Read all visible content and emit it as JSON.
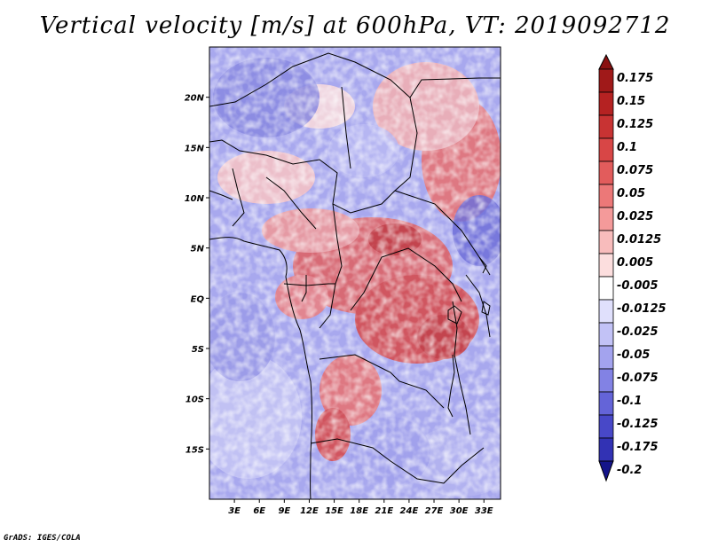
{
  "title": "Vertical velocity [m/s] at 600hPa, VT: 2019092712",
  "credit": "GrADS: IGES/COLA",
  "map": {
    "lon_range": [
      0,
      35
    ],
    "lat_range": [
      -20,
      25
    ],
    "lon_ticks": [
      {
        "value": 3,
        "label": "3E"
      },
      {
        "value": 6,
        "label": "6E"
      },
      {
        "value": 9,
        "label": "9E"
      },
      {
        "value": 12,
        "label": "12E"
      },
      {
        "value": 15,
        "label": "15E"
      },
      {
        "value": 18,
        "label": "18E"
      },
      {
        "value": 21,
        "label": "21E"
      },
      {
        "value": 24,
        "label": "24E"
      },
      {
        "value": 27,
        "label": "27E"
      },
      {
        "value": 30,
        "label": "30E"
      },
      {
        "value": 33,
        "label": "33E"
      }
    ],
    "lat_ticks": [
      {
        "value": 20,
        "label": "20N"
      },
      {
        "value": 15,
        "label": "15N"
      },
      {
        "value": 10,
        "label": "10N"
      },
      {
        "value": 5,
        "label": "5N"
      },
      {
        "value": 0,
        "label": "EQ"
      },
      {
        "value": -5,
        "label": "5S"
      },
      {
        "value": -10,
        "label": "10S"
      },
      {
        "value": -15,
        "label": "15S"
      }
    ]
  },
  "colorbar": {
    "levels": [
      {
        "label": "0.175",
        "color": "#a01919"
      },
      {
        "label": "0.15",
        "color": "#b52222"
      },
      {
        "label": "0.125",
        "color": "#c83333"
      },
      {
        "label": "0.1",
        "color": "#d84646"
      },
      {
        "label": "0.075",
        "color": "#e25c5c"
      },
      {
        "label": "0.05",
        "color": "#ec7878"
      },
      {
        "label": "0.025",
        "color": "#f49a9a"
      },
      {
        "label": "0.0125",
        "color": "#f8bcbc"
      },
      {
        "label": "0.005",
        "color": "#fcdede"
      },
      {
        "label": "-0.005",
        "color": "#ffffff"
      },
      {
        "label": "-0.0125",
        "color": "#e0e0fc"
      },
      {
        "label": "-0.025",
        "color": "#c2c2f6"
      },
      {
        "label": "-0.05",
        "color": "#a3a3ee"
      },
      {
        "label": "-0.075",
        "color": "#8282e4"
      },
      {
        "label": "-0.1",
        "color": "#6464d8"
      },
      {
        "label": "-0.125",
        "color": "#4848c8"
      },
      {
        "label": "-0.175",
        "color": "#3232b4"
      },
      {
        "label": "-0.2",
        "color": "#20209c"
      }
    ],
    "top_cap_color": "#8a1010",
    "bottom_cap_color": "#14148a"
  }
}
